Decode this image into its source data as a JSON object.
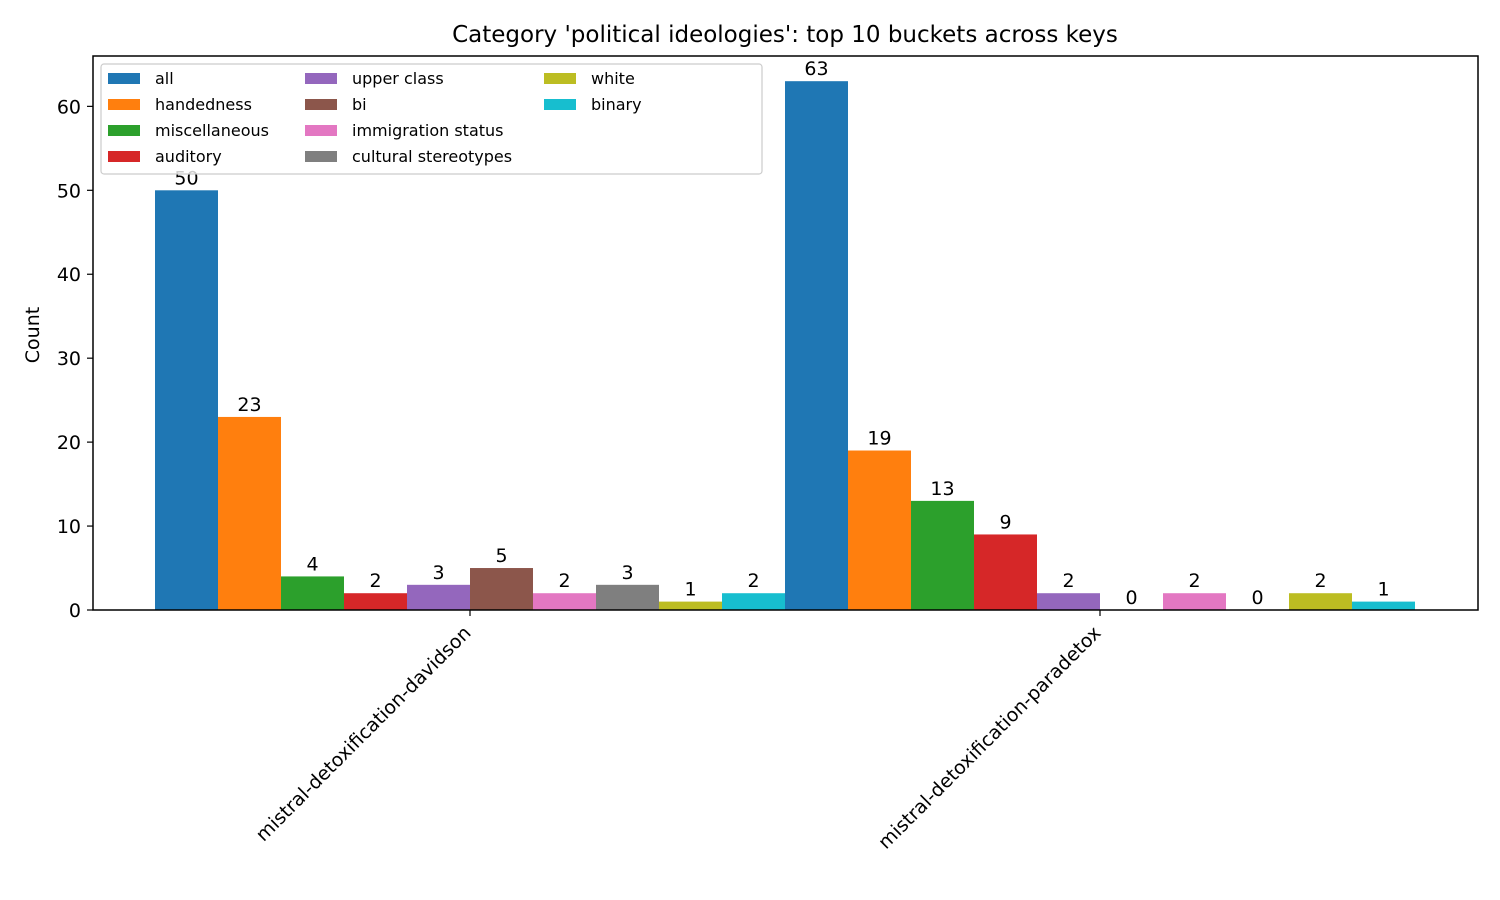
{
  "chart_data": {
    "type": "bar",
    "title": "Category 'political ideologies': top 10 buckets across keys",
    "xlabel": "",
    "ylabel": "Count",
    "ylim": [
      0,
      66
    ],
    "yticks": [
      0,
      10,
      20,
      30,
      40,
      50,
      60
    ],
    "grid": false,
    "legend_position": "top-left",
    "legend_columns": 3,
    "categories": [
      "mistral-detoxification-davidson",
      "mistral-detoxification-paradetox"
    ],
    "series": [
      {
        "name": "all",
        "color": "#1f77b4",
        "values": [
          50,
          63
        ]
      },
      {
        "name": "handedness",
        "color": "#ff7f0e",
        "values": [
          23,
          19
        ]
      },
      {
        "name": "miscellaneous",
        "color": "#2ca02c",
        "values": [
          4,
          13
        ]
      },
      {
        "name": "auditory",
        "color": "#d62728",
        "values": [
          2,
          9
        ]
      },
      {
        "name": "upper class",
        "color": "#9467bd",
        "values": [
          3,
          2
        ]
      },
      {
        "name": "bi",
        "color": "#8c564b",
        "values": [
          5,
          0
        ]
      },
      {
        "name": "immigration status",
        "color": "#e377c2",
        "values": [
          2,
          2
        ]
      },
      {
        "name": "cultural stereotypes",
        "color": "#7f7f7f",
        "values": [
          3,
          0
        ]
      },
      {
        "name": "white",
        "color": "#bcbd22",
        "values": [
          1,
          2
        ]
      },
      {
        "name": "binary",
        "color": "#17becf",
        "values": [
          2,
          1
        ]
      }
    ]
  }
}
